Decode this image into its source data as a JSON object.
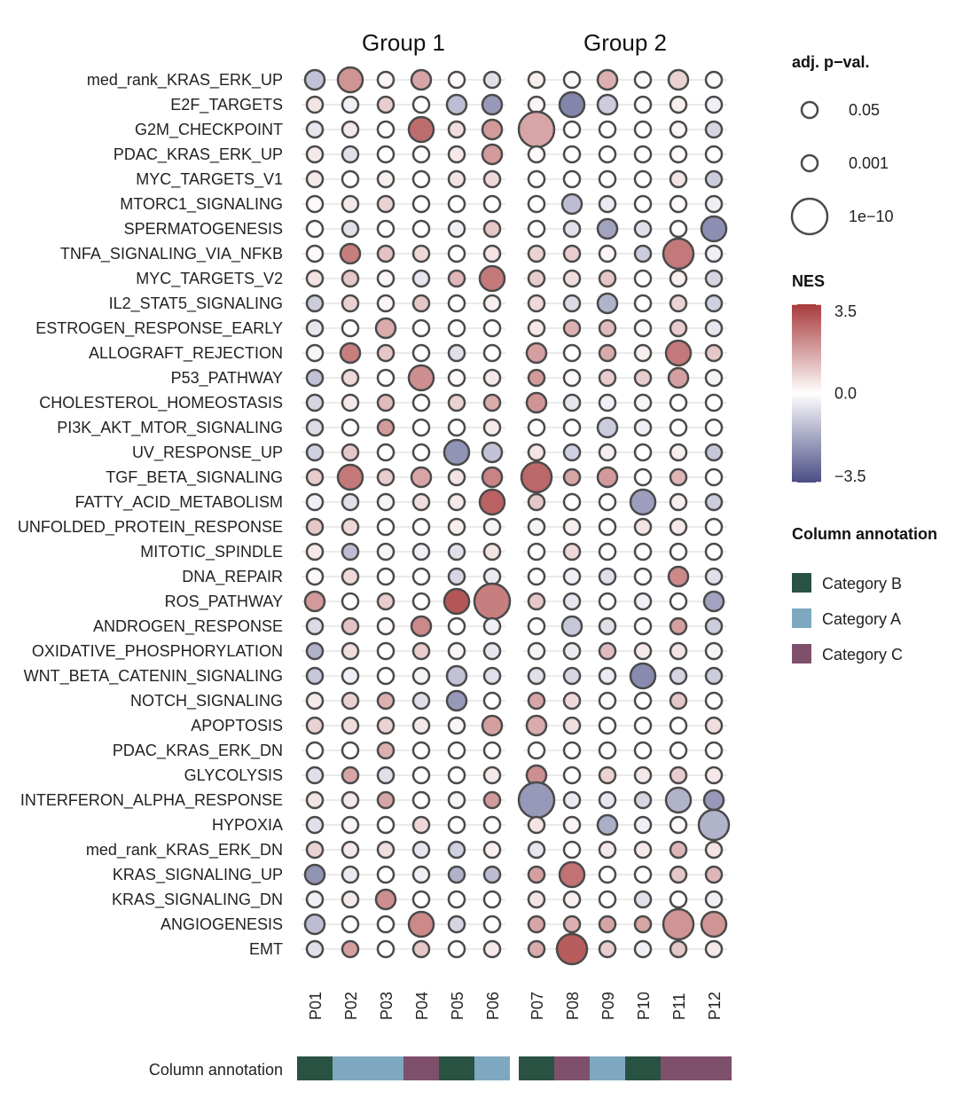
{
  "chart_data": {
    "type": "dotplot",
    "groups": [
      "Group 1",
      "Group 2"
    ],
    "columns": [
      {
        "name": "P01",
        "group": 0,
        "annotation": "Category B"
      },
      {
        "name": "P02",
        "group": 0,
        "annotation": "Category A"
      },
      {
        "name": "P03",
        "group": 0,
        "annotation": "Category A"
      },
      {
        "name": "P04",
        "group": 0,
        "annotation": "Category C"
      },
      {
        "name": "P05",
        "group": 0,
        "annotation": "Category B"
      },
      {
        "name": "P06",
        "group": 0,
        "annotation": "Category A"
      },
      {
        "name": "P07",
        "group": 1,
        "annotation": "Category B"
      },
      {
        "name": "P08",
        "group": 1,
        "annotation": "Category C"
      },
      {
        "name": "P09",
        "group": 1,
        "annotation": "Category A"
      },
      {
        "name": "P10",
        "group": 1,
        "annotation": "Category B"
      },
      {
        "name": "P11",
        "group": 1,
        "annotation": "Category C"
      },
      {
        "name": "P12",
        "group": 1,
        "annotation": "Category C"
      }
    ],
    "rows": [
      {
        "name": "med_rank_KRAS_ERK_UP",
        "nes": [
          -1.2,
          1.9,
          0.2,
          1.6,
          0.1,
          -0.6,
          0.3,
          0.1,
          1.4,
          0.1,
          0.8,
          0.1
        ],
        "size": [
          1,
          2,
          0,
          1,
          0,
          0,
          0,
          0,
          1,
          0,
          1,
          0
        ]
      },
      {
        "name": "E2F_TARGETS",
        "nes": [
          0.5,
          -0.3,
          0.9,
          0.0,
          -1.3,
          -2.0,
          0.2,
          -2.4,
          -1.0,
          0.0,
          0.3,
          -0.3
        ],
        "size": [
          0,
          0,
          0,
          0,
          1,
          1,
          0,
          2,
          1,
          0,
          0,
          0
        ]
      },
      {
        "name": "G2M_CHECKPOINT",
        "nes": [
          -0.5,
          0.4,
          0.0,
          2.6,
          0.6,
          1.8,
          1.6,
          0.0,
          0.0,
          0.0,
          0.2,
          -0.8
        ],
        "size": [
          0,
          0,
          0,
          2,
          0,
          1,
          4,
          0,
          0,
          0,
          0,
          0
        ]
      },
      {
        "name": "PDAC_KRAS_ERK_UP",
        "nes": [
          0.4,
          -0.6,
          0.0,
          0.0,
          0.4,
          1.8,
          0.1,
          0.0,
          0.0,
          0.0,
          0.1,
          0.0
        ],
        "size": [
          0,
          0,
          0,
          0,
          0,
          1,
          0,
          0,
          0,
          0,
          0,
          0
        ]
      },
      {
        "name": "MYC_TARGETS_V1",
        "nes": [
          0.4,
          0.0,
          0.3,
          0.0,
          0.5,
          0.7,
          0.0,
          0.0,
          0.0,
          0.0,
          0.5,
          -1.0
        ],
        "size": [
          0,
          0,
          0,
          0,
          0,
          0,
          0,
          0,
          0,
          0,
          0,
          0
        ]
      },
      {
        "name": "MTORC1_SIGNALING",
        "nes": [
          0.1,
          0.4,
          0.8,
          0.0,
          0.0,
          0.0,
          0.0,
          -1.3,
          -0.4,
          0.0,
          0.1,
          -0.3
        ],
        "size": [
          0,
          0,
          0,
          0,
          0,
          0,
          0,
          1,
          0,
          0,
          0,
          0
        ]
      },
      {
        "name": "SPERMATOGENESIS",
        "nes": [
          0.0,
          -0.6,
          0.0,
          0.0,
          -0.3,
          1.0,
          0.0,
          -0.6,
          -1.8,
          -0.6,
          0.0,
          -2.2
        ],
        "size": [
          0,
          0,
          0,
          0,
          0,
          0,
          0,
          0,
          1,
          0,
          0,
          2
        ]
      },
      {
        "name": "TNFA_SIGNALING_VIA_NFKB",
        "nes": [
          0.1,
          2.3,
          1.1,
          0.7,
          0.0,
          0.5,
          0.8,
          0.9,
          0.2,
          -1.0,
          2.4,
          -0.3
        ],
        "size": [
          0,
          1,
          0,
          0,
          0,
          0,
          0,
          0,
          0,
          0,
          3,
          0
        ]
      },
      {
        "name": "MYC_TARGETS_V2",
        "nes": [
          0.5,
          1.0,
          0.2,
          -0.5,
          1.3,
          2.4,
          0.9,
          0.6,
          1.0,
          0.0,
          0.3,
          -0.8
        ],
        "size": [
          0,
          0,
          0,
          0,
          0,
          2,
          0,
          0,
          0,
          0,
          0,
          0
        ]
      },
      {
        "name": "IL2_STAT5_SIGNALING",
        "nes": [
          -1.0,
          0.8,
          0.2,
          1.0,
          0.0,
          0.3,
          0.7,
          -0.7,
          -1.5,
          0.0,
          0.8,
          -0.9
        ],
        "size": [
          0,
          0,
          0,
          0,
          0,
          0,
          0,
          0,
          1,
          0,
          0,
          0
        ]
      },
      {
        "name": "ESTROGEN_RESPONSE_EARLY",
        "nes": [
          -0.5,
          0.0,
          1.5,
          0.0,
          0.0,
          0.0,
          0.4,
          1.4,
          1.2,
          0.1,
          0.9,
          -0.5
        ],
        "size": [
          0,
          0,
          1,
          0,
          0,
          0,
          0,
          0,
          0,
          0,
          0,
          0
        ]
      },
      {
        "name": "ALLOGRAFT_REJECTION",
        "nes": [
          -0.2,
          2.3,
          1.0,
          0.0,
          -0.6,
          0.0,
          1.7,
          0.0,
          1.5,
          0.3,
          2.4,
          1.0
        ],
        "size": [
          0,
          1,
          0,
          0,
          0,
          0,
          1,
          0,
          0,
          0,
          2,
          0
        ]
      },
      {
        "name": "P53_PATHWAY",
        "nes": [
          -1.2,
          0.7,
          0.0,
          2.0,
          0.1,
          0.4,
          1.8,
          0.1,
          0.9,
          0.9,
          1.7,
          -0.2
        ],
        "size": [
          0,
          0,
          0,
          2,
          0,
          0,
          0,
          0,
          0,
          0,
          1,
          0
        ]
      },
      {
        "name": "CHOLESTEROL_HOMEOSTASIS",
        "nes": [
          -0.8,
          0.4,
          1.2,
          0.0,
          0.8,
          1.5,
          1.9,
          -0.5,
          -0.3,
          -0.2,
          0.0,
          0.0
        ],
        "size": [
          0,
          0,
          0,
          0,
          0,
          0,
          1,
          0,
          0,
          0,
          0,
          0
        ]
      },
      {
        "name": "PI3K_AKT_MTOR_SIGNALING",
        "nes": [
          -0.7,
          0.0,
          1.8,
          0.0,
          0.0,
          0.4,
          0.0,
          0.0,
          -1.0,
          -0.3,
          0.0,
          0.0
        ],
        "size": [
          0,
          0,
          0,
          0,
          0,
          0,
          0,
          0,
          1,
          0,
          0,
          0
        ]
      },
      {
        "name": "UV_RESPONSE_UP",
        "nes": [
          -0.9,
          1.0,
          0.0,
          0.0,
          -2.1,
          -1.2,
          0.5,
          -0.9,
          0.3,
          0.0,
          0.3,
          -1.1
        ],
        "size": [
          0,
          0,
          0,
          0,
          2,
          1,
          0,
          0,
          0,
          0,
          0,
          0
        ]
      },
      {
        "name": "TGF_BETA_SIGNALING",
        "nes": [
          0.9,
          2.4,
          0.9,
          1.6,
          0.5,
          2.2,
          2.7,
          1.6,
          1.8,
          0.0,
          1.3,
          0.0
        ],
        "size": [
          0,
          2,
          0,
          1,
          0,
          1,
          3,
          0,
          1,
          0,
          0,
          0
        ]
      },
      {
        "name": "FATTY_ACID_METABOLISM",
        "nes": [
          -0.3,
          -0.6,
          -0.2,
          0.6,
          0.4,
          2.8,
          1.0,
          0.0,
          0.0,
          -1.9,
          0.3,
          -1.0
        ],
        "size": [
          0,
          0,
          0,
          0,
          0,
          2,
          0,
          0,
          0,
          2,
          0,
          0
        ]
      },
      {
        "name": "UNFOLDED_PROTEIN_RESPONSE",
        "nes": [
          1.0,
          0.7,
          0.0,
          0.0,
          0.3,
          -0.2,
          -0.2,
          0.3,
          0.0,
          0.5,
          0.4,
          0.0
        ],
        "size": [
          0,
          0,
          0,
          0,
          0,
          0,
          0,
          0,
          0,
          0,
          0,
          0
        ]
      },
      {
        "name": "MITOTIC_SPINDLE",
        "nes": [
          0.4,
          -1.3,
          -0.2,
          -0.3,
          -0.6,
          0.5,
          0.0,
          0.7,
          0.0,
          0.0,
          0.0,
          0.0
        ],
        "size": [
          0,
          0,
          0,
          0,
          0,
          0,
          0,
          0,
          0,
          0,
          0,
          0
        ]
      },
      {
        "name": "DNA_REPAIR",
        "nes": [
          0.1,
          0.7,
          0.0,
          0.0,
          -0.8,
          -0.4,
          0.0,
          -0.3,
          -0.6,
          0.0,
          2.1,
          -0.6
        ],
        "size": [
          0,
          0,
          0,
          0,
          0,
          0,
          0,
          0,
          0,
          0,
          1,
          0
        ]
      },
      {
        "name": "ROS_PATHWAY",
        "nes": [
          1.8,
          0.0,
          0.9,
          0.0,
          3.0,
          2.3,
          1.0,
          -0.5,
          0.0,
          -0.3,
          0.0,
          -1.8
        ],
        "size": [
          1,
          0,
          0,
          0,
          2,
          4,
          0,
          0,
          0,
          0,
          0,
          1
        ]
      },
      {
        "name": "ANDROGEN_RESPONSE",
        "nes": [
          -0.7,
          1.1,
          0.1,
          2.1,
          0.0,
          -0.3,
          0.0,
          -1.1,
          -0.6,
          0.0,
          1.7,
          -1.0
        ],
        "size": [
          0,
          0,
          0,
          1,
          0,
          0,
          0,
          1,
          0,
          0,
          0,
          0
        ]
      },
      {
        "name": "OXIDATIVE_PHOSPHORYLATION",
        "nes": [
          -1.5,
          0.6,
          0.0,
          0.9,
          0.2,
          -0.5,
          -0.2,
          -0.4,
          1.2,
          0.4,
          0.5,
          -0.2
        ],
        "size": [
          0,
          0,
          0,
          0,
          0,
          0,
          0,
          0,
          0,
          0,
          0,
          0
        ]
      },
      {
        "name": "WNT_BETA_CATENIN_SIGNALING",
        "nes": [
          -1.1,
          -0.3,
          0.0,
          -0.2,
          -1.2,
          -0.6,
          -0.6,
          -0.8,
          -0.4,
          -2.3,
          -0.8,
          -1.0
        ],
        "size": [
          0,
          0,
          0,
          0,
          1,
          0,
          0,
          0,
          0,
          2,
          0,
          0
        ]
      },
      {
        "name": "NOTCH_SIGNALING",
        "nes": [
          0.4,
          0.8,
          1.4,
          -0.6,
          -2.0,
          0.0,
          1.6,
          0.7,
          0.1,
          0.0,
          1.0,
          0.0
        ],
        "size": [
          0,
          0,
          0,
          0,
          1,
          0,
          0,
          0,
          0,
          0,
          0,
          0
        ]
      },
      {
        "name": "APOPTOSIS",
        "nes": [
          0.8,
          0.6,
          0.8,
          0.4,
          0.2,
          1.7,
          1.5,
          0.6,
          0.0,
          0.0,
          0.0,
          0.6
        ],
        "size": [
          0,
          0,
          0,
          0,
          0,
          1,
          1,
          0,
          0,
          0,
          0,
          0
        ]
      },
      {
        "name": "PDAC_KRAS_ERK_DN",
        "nes": [
          0.0,
          0.0,
          1.4,
          0.0,
          0.0,
          0.0,
          0.0,
          0.0,
          0.0,
          0.0,
          0.0,
          0.0
        ],
        "size": [
          0,
          0,
          0,
          0,
          0,
          0,
          0,
          0,
          0,
          0,
          0,
          0
        ]
      },
      {
        "name": "GLYCOLYSIS",
        "nes": [
          -0.6,
          1.6,
          -0.6,
          0.0,
          0.0,
          0.4,
          2.0,
          0.0,
          0.8,
          0.4,
          0.9,
          0.4
        ],
        "size": [
          0,
          0,
          0,
          0,
          0,
          0,
          1,
          0,
          0,
          0,
          0,
          0
        ]
      },
      {
        "name": "INTERFERON_ALPHA_RESPONSE",
        "nes": [
          0.5,
          0.4,
          1.6,
          0.0,
          -0.2,
          1.8,
          -2.0,
          -0.4,
          -0.5,
          -0.8,
          -1.5,
          -2.0
        ],
        "size": [
          0,
          0,
          0,
          0,
          0,
          0,
          4,
          0,
          0,
          0,
          2,
          1
        ]
      },
      {
        "name": "HYPOXIA",
        "nes": [
          -0.6,
          0.2,
          0.0,
          0.7,
          0.0,
          0.0,
          0.5,
          0.2,
          -1.6,
          -0.3,
          0.1,
          -1.5
        ],
        "size": [
          0,
          0,
          0,
          0,
          0,
          0,
          0,
          0,
          1,
          0,
          0,
          3
        ]
      },
      {
        "name": "med_rank_KRAS_ERK_DN",
        "nes": [
          0.8,
          0.4,
          0.6,
          -0.5,
          -0.9,
          0.3,
          -0.5,
          0.0,
          0.4,
          0.4,
          1.3,
          0.5
        ],
        "size": [
          0,
          0,
          0,
          0,
          0,
          0,
          0,
          0,
          0,
          0,
          0,
          0
        ]
      },
      {
        "name": "KRAS_SIGNALING_UP",
        "nes": [
          -2.1,
          -0.4,
          0.0,
          -0.3,
          -1.5,
          -1.3,
          1.7,
          2.5,
          0.0,
          0.0,
          1.0,
          1.3
        ],
        "size": [
          1,
          0,
          0,
          0,
          0,
          0,
          0,
          2,
          0,
          0,
          0,
          0
        ]
      },
      {
        "name": "KRAS_SIGNALING_DN",
        "nes": [
          -0.3,
          0.4,
          2.0,
          0.0,
          0.0,
          0.0,
          0.5,
          0.3,
          0.0,
          -0.6,
          0.0,
          -0.3
        ],
        "size": [
          0,
          0,
          1,
          0,
          0,
          0,
          0,
          0,
          0,
          0,
          0,
          0
        ]
      },
      {
        "name": "ANGIOGENESIS",
        "nes": [
          -1.3,
          0.0,
          0.0,
          2.1,
          -0.8,
          0.0,
          1.6,
          1.4,
          1.6,
          1.6,
          1.9,
          1.9
        ],
        "size": [
          1,
          0,
          0,
          2,
          0,
          0,
          0,
          0,
          0,
          0,
          3,
          2
        ]
      },
      {
        "name": "EMT",
        "nes": [
          -0.6,
          1.7,
          0.0,
          1.0,
          0.0,
          0.4,
          1.5,
          2.9,
          0.9,
          -0.3,
          1.0,
          0.4
        ],
        "size": [
          0,
          0,
          0,
          0,
          0,
          0,
          0,
          3,
          0,
          0,
          0,
          0
        ]
      }
    ],
    "size_legend": {
      "title": "adj. p−val.",
      "labels": [
        "0.05",
        "0.001",
        "1e−10"
      ]
    },
    "color_legend": {
      "title": "NES",
      "min": -3.5,
      "max": 3.5,
      "labels": [
        "3.5",
        "0.0",
        "−3.5"
      ],
      "colors": [
        "#4a4d85",
        "#ffffff",
        "#a83a3c"
      ]
    },
    "annotation": {
      "row_label": "Column annotation",
      "legend_title": "Column annotation",
      "categories": [
        {
          "name": "Category B",
          "color": "#2a5243"
        },
        {
          "name": "Category A",
          "color": "#7ea8c0"
        },
        {
          "name": "Category C",
          "color": "#7f506b"
        }
      ]
    }
  }
}
